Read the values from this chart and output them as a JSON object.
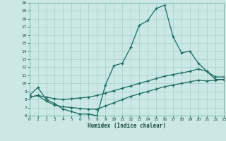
{
  "xlabel": "Humidex (Indice chaleur)",
  "bg_color": "#cbe8e5",
  "grid_color": "#a8d4d0",
  "line_color": "#1a6b5e",
  "xlim": [
    0,
    23
  ],
  "ylim": [
    6,
    20
  ],
  "xticks": [
    0,
    1,
    2,
    3,
    4,
    5,
    6,
    7,
    8,
    9,
    10,
    11,
    12,
    13,
    14,
    15,
    16,
    17,
    18,
    19,
    20,
    21,
    22,
    23
  ],
  "yticks": [
    6,
    7,
    8,
    9,
    10,
    11,
    12,
    13,
    14,
    15,
    16,
    17,
    18,
    19,
    20
  ],
  "line1_x": [
    0,
    1,
    2,
    3,
    4,
    5,
    6,
    7,
    8,
    9,
    10,
    11,
    12,
    13,
    14,
    15,
    16,
    17,
    18,
    19,
    20,
    21,
    22,
    23
  ],
  "line1_y": [
    8.5,
    9.5,
    8.0,
    7.5,
    6.8,
    6.5,
    6.2,
    6.2,
    6.0,
    9.8,
    12.2,
    12.5,
    14.5,
    17.2,
    17.8,
    19.3,
    19.7,
    15.8,
    13.8,
    14.0,
    12.5,
    11.5,
    10.5,
    10.5
  ],
  "line2_x": [
    0,
    1,
    2,
    3,
    4,
    5,
    6,
    7,
    8,
    9,
    10,
    11,
    12,
    13,
    14,
    15,
    16,
    17,
    18,
    19,
    20,
    21,
    22,
    23
  ],
  "line2_y": [
    8.3,
    8.5,
    8.3,
    8.1,
    8.0,
    8.1,
    8.2,
    8.3,
    8.5,
    8.8,
    9.1,
    9.4,
    9.7,
    10.0,
    10.3,
    10.6,
    10.9,
    11.1,
    11.3,
    11.5,
    11.8,
    11.5,
    10.8,
    10.8
  ],
  "line3_x": [
    0,
    1,
    2,
    3,
    4,
    5,
    6,
    7,
    8,
    9,
    10,
    11,
    12,
    13,
    14,
    15,
    16,
    17,
    18,
    19,
    20,
    21,
    22,
    23
  ],
  "line3_y": [
    8.3,
    8.5,
    7.8,
    7.3,
    7.1,
    7.0,
    6.9,
    6.8,
    6.8,
    7.2,
    7.6,
    8.0,
    8.4,
    8.7,
    9.0,
    9.3,
    9.6,
    9.8,
    10.0,
    10.2,
    10.4,
    10.3,
    10.4,
    10.5
  ]
}
